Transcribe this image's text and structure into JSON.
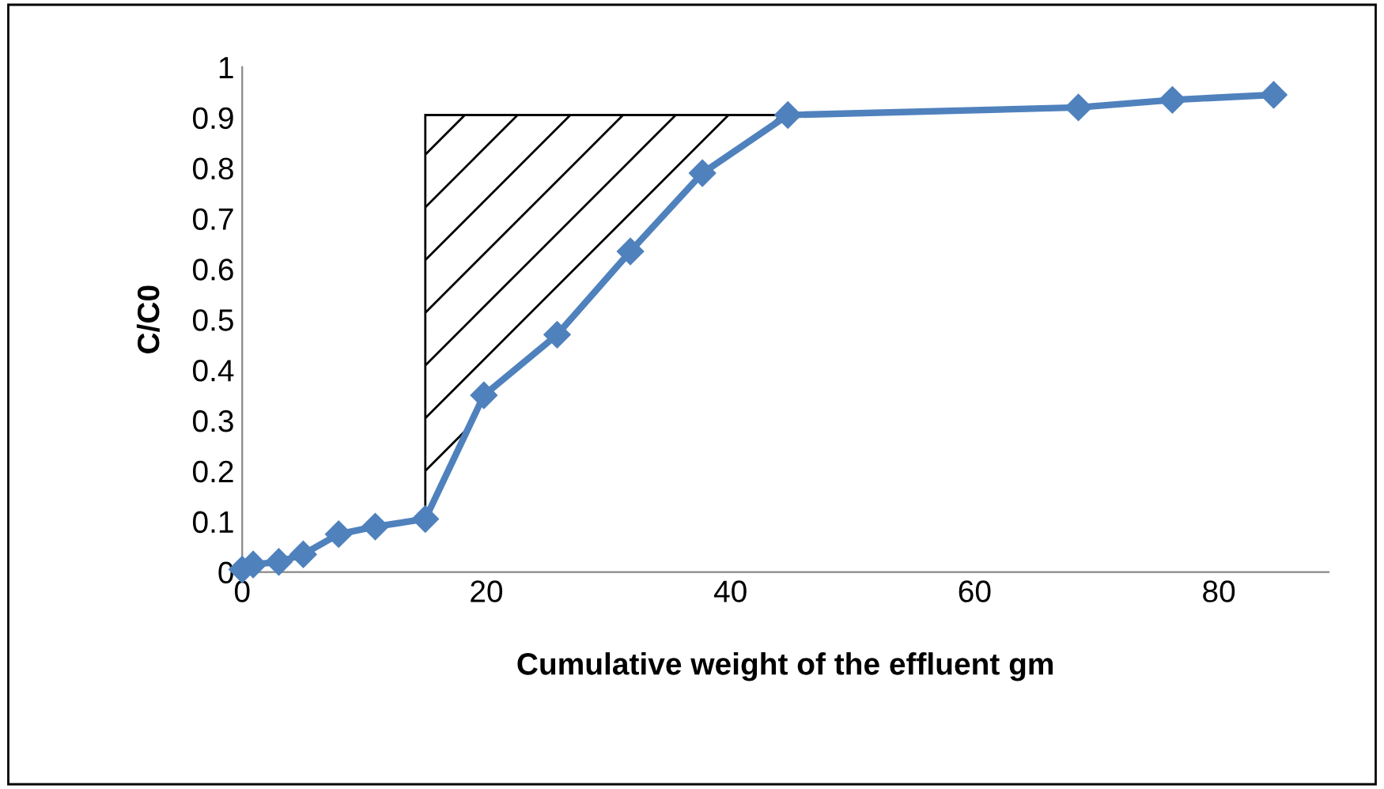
{
  "chart_data": {
    "type": "line",
    "xlabel": "Cumulative weight of the effluent gm",
    "ylabel": "C/C0",
    "x": [
      0,
      0.9,
      3,
      5,
      7.9,
      10.9,
      15,
      19.8,
      25.8,
      31.8,
      37.7,
      44.7,
      68.5,
      76.2,
      84.5
    ],
    "series": [
      {
        "color": "#4f81bd",
        "values": [
          0.005,
          0.015,
          0.02,
          0.035,
          0.075,
          0.09,
          0.105,
          0.35,
          0.47,
          0.635,
          0.79,
          0.905,
          0.92,
          0.935,
          0.945
        ]
      }
    ],
    "xlim": [
      0,
      89
    ],
    "xticks": [
      0,
      20,
      40,
      60,
      80
    ],
    "ylim": [
      0,
      1
    ],
    "yticks": [
      0,
      0.1,
      0.2,
      0.3,
      0.4,
      0.5,
      0.6,
      0.7,
      0.8,
      0.9,
      1
    ],
    "marker": "diamond",
    "line_style": "solid",
    "grid": false,
    "legend": false
  }
}
